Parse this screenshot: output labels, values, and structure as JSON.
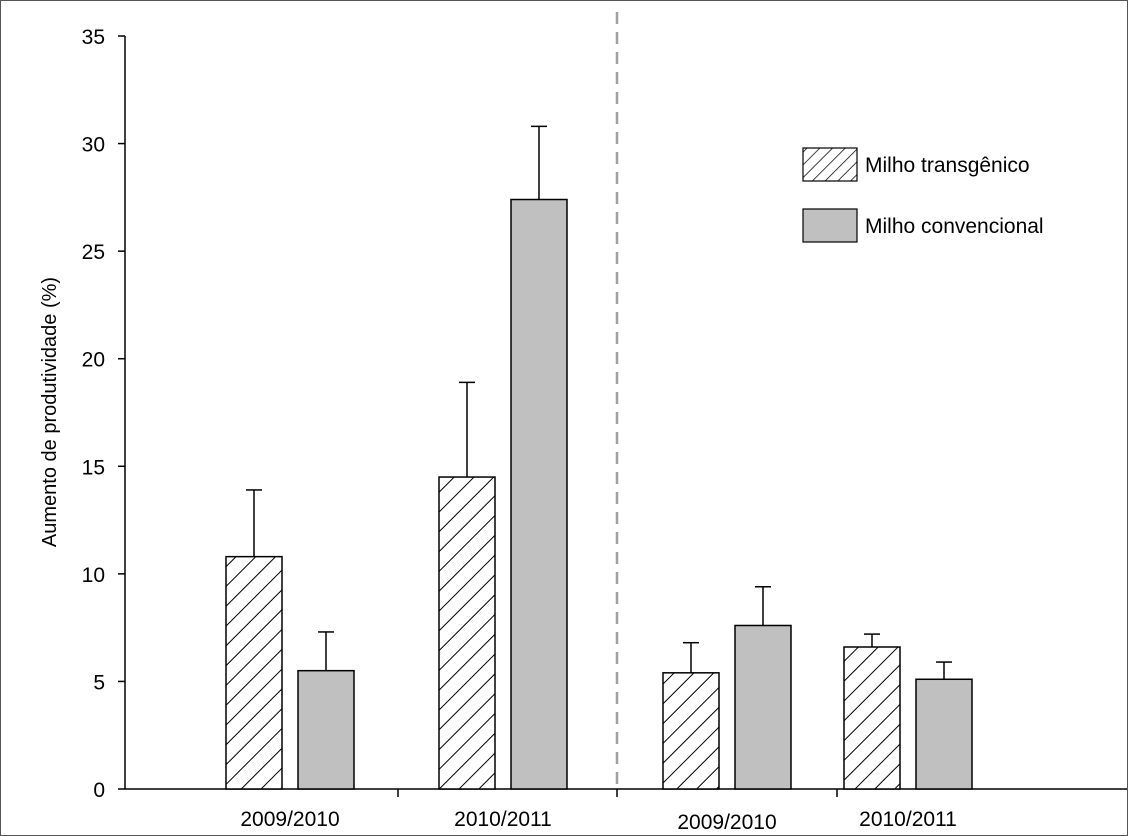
{
  "chart_data": {
    "type": "bar",
    "ylabel": "Aumento de produtividade (%)",
    "ylim": [
      0,
      35
    ],
    "yticks": [
      0,
      5,
      10,
      15,
      20,
      25,
      30,
      35
    ],
    "categories": [
      "2009/2010",
      "2010/2011",
      "2009/2010",
      "2010/2011"
    ],
    "series": [
      {
        "name": "Milho transgênico",
        "values": [
          10.8,
          14.5,
          5.4,
          6.6
        ],
        "errors": [
          3.1,
          4.4,
          1.4,
          0.6
        ],
        "pattern": "hatched",
        "color": "#ffffff"
      },
      {
        "name": "Milho convencional",
        "values": [
          5.5,
          27.4,
          7.6,
          5.1
        ],
        "errors": [
          1.8,
          3.4,
          1.8,
          0.8
        ],
        "pattern": "solid",
        "color": "#c0c0c0"
      }
    ],
    "divider_after_category": 1,
    "grid": false,
    "legend_position": "top-right"
  }
}
